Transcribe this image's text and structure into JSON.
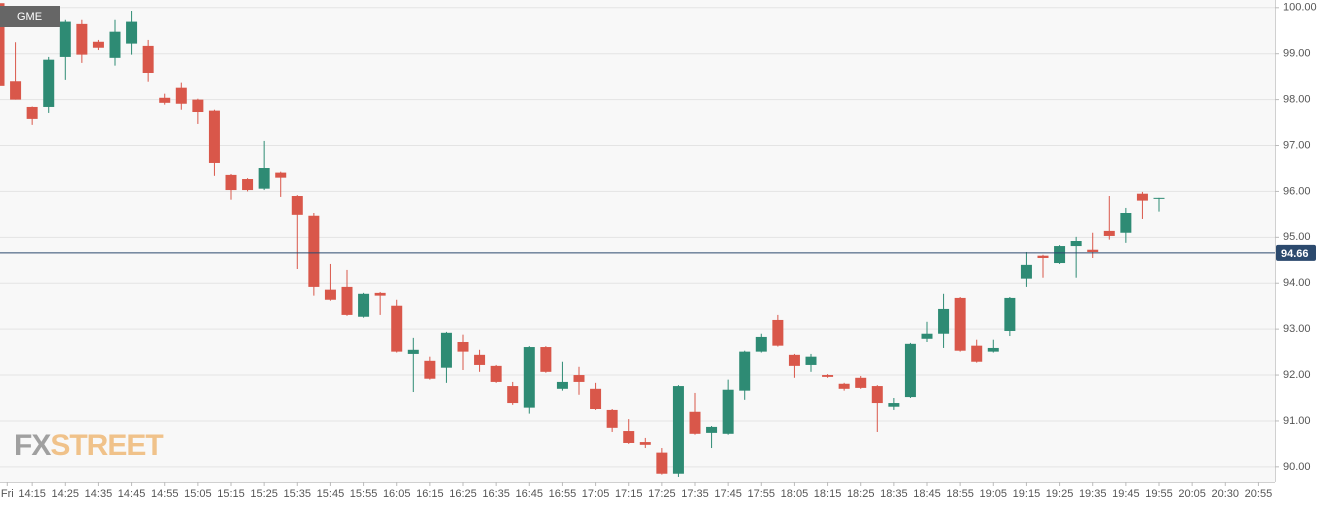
{
  "chart_data": {
    "type": "candlestick",
    "symbol": "GME",
    "watermark": [
      "FX",
      "STREET"
    ],
    "up_color": "#2e8b74",
    "down_color": "#d9574a",
    "grid": true,
    "current_price": 94.66,
    "current_price_color": "#2c4a6e",
    "x": [
      0,
      1,
      2,
      3,
      4,
      5,
      6,
      7,
      8,
      9,
      10,
      11,
      12,
      13,
      14,
      15,
      16,
      17,
      18,
      19,
      20,
      21,
      22,
      23,
      24,
      25,
      26,
      27,
      28,
      29,
      30,
      31,
      32,
      33,
      34,
      35,
      36,
      37,
      38,
      39,
      40,
      41,
      42,
      43,
      44,
      45,
      46,
      47,
      48,
      49,
      50,
      51,
      52,
      53,
      54,
      55,
      56,
      57,
      58,
      59,
      60,
      61,
      62,
      63,
      64,
      65,
      66,
      67,
      68,
      69,
      70
    ],
    "open": [
      100.1,
      98.4,
      97.84,
      97.84,
      98.93,
      99.65,
      99.26,
      98.91,
      99.22,
      99.17,
      98.04,
      98.26,
      98.0,
      97.76,
      96.36,
      96.27,
      96.06,
      96.41,
      95.9,
      95.47,
      93.86,
      93.92,
      93.27,
      93.79,
      93.51,
      92.46,
      92.31,
      92.16,
      92.72,
      92.44,
      92.2,
      91.76,
      91.29,
      92.61,
      91.7,
      92.0,
      91.7,
      91.24,
      90.78,
      90.54,
      90.31,
      89.85,
      91.2,
      90.74,
      90.72,
      91.66,
      92.51,
      93.2,
      92.44,
      92.22,
      92.0,
      91.81,
      91.94,
      91.76,
      91.31,
      91.52,
      92.79,
      92.9,
      93.68,
      92.64,
      92.51,
      92.96,
      94.1,
      94.6,
      94.44,
      94.81,
      94.73,
      95.14,
      95.1,
      95.95,
      95.85
    ],
    "high": [
      100.15,
      99.25,
      97.85,
      98.93,
      99.74,
      99.74,
      99.3,
      99.74,
      99.93,
      99.3,
      98.13,
      98.37,
      98.02,
      97.78,
      96.38,
      96.29,
      97.1,
      96.43,
      95.92,
      95.53,
      94.42,
      94.29,
      93.79,
      93.81,
      93.64,
      92.81,
      92.4,
      92.94,
      92.88,
      92.55,
      92.22,
      91.85,
      92.63,
      92.63,
      92.29,
      92.18,
      91.83,
      91.26,
      91.04,
      90.63,
      90.41,
      91.78,
      91.61,
      90.89,
      91.9,
      92.53,
      92.9,
      93.31,
      92.46,
      92.46,
      92.02,
      91.83,
      91.98,
      91.78,
      91.5,
      92.7,
      93.16,
      93.77,
      93.7,
      92.77,
      92.77,
      93.7,
      94.68,
      94.62,
      94.83,
      95.01,
      95.1,
      95.9,
      95.64,
      95.99,
      95.86
    ],
    "low": [
      98.25,
      98.0,
      97.45,
      97.71,
      98.43,
      98.8,
      99.08,
      98.74,
      98.98,
      98.39,
      97.89,
      97.78,
      97.47,
      96.34,
      95.82,
      96.0,
      96.03,
      95.88,
      94.31,
      93.73,
      93.62,
      93.29,
      93.25,
      93.31,
      92.49,
      91.63,
      91.9,
      91.83,
      92.11,
      92.07,
      91.83,
      91.35,
      91.16,
      92.05,
      91.66,
      91.57,
      91.24,
      90.76,
      90.5,
      90.41,
      89.83,
      89.78,
      90.7,
      90.41,
      90.7,
      91.46,
      92.49,
      92.62,
      91.94,
      92.07,
      91.94,
      91.66,
      91.7,
      90.76,
      91.24,
      91.5,
      92.72,
      92.59,
      92.51,
      92.27,
      92.49,
      92.85,
      93.92,
      94.12,
      94.42,
      94.12,
      94.55,
      94.95,
      94.88,
      95.4,
      95.56
    ],
    "close": [
      98.3,
      98.0,
      97.58,
      98.87,
      99.7,
      98.98,
      99.13,
      99.48,
      99.7,
      98.58,
      97.93,
      97.91,
      97.73,
      96.62,
      96.03,
      96.03,
      96.51,
      96.3,
      95.49,
      93.92,
      93.64,
      93.31,
      93.77,
      93.73,
      92.51,
      92.55,
      91.92,
      92.92,
      92.51,
      92.22,
      91.85,
      91.39,
      92.61,
      92.07,
      91.85,
      91.85,
      91.26,
      90.85,
      90.52,
      90.48,
      89.85,
      91.76,
      90.72,
      90.87,
      91.68,
      92.51,
      92.83,
      92.64,
      92.2,
      92.4,
      91.96,
      91.7,
      91.72,
      91.39,
      91.39,
      92.68,
      92.9,
      93.44,
      92.53,
      92.29,
      92.59,
      93.68,
      94.4,
      94.55,
      94.81,
      94.92,
      94.68,
      95.03,
      95.53,
      95.8,
      95.86
    ],
    "xlim": [
      0.06,
      77
    ],
    "xticks": [
      {
        "value": 0.5,
        "label": "Fri"
      },
      {
        "value": 2,
        "label": "14:15"
      },
      {
        "value": 4,
        "label": "14:25"
      },
      {
        "value": 6,
        "label": "14:35"
      },
      {
        "value": 8,
        "label": "14:45"
      },
      {
        "value": 10,
        "label": "14:55"
      },
      {
        "value": 12,
        "label": "15:05"
      },
      {
        "value": 14,
        "label": "15:15"
      },
      {
        "value": 16,
        "label": "15:25"
      },
      {
        "value": 18,
        "label": "15:35"
      },
      {
        "value": 20,
        "label": "15:45"
      },
      {
        "value": 22,
        "label": "15:55"
      },
      {
        "value": 24,
        "label": "16:05"
      },
      {
        "value": 26,
        "label": "16:15"
      },
      {
        "value": 28,
        "label": "16:25"
      },
      {
        "value": 30,
        "label": "16:35"
      },
      {
        "value": 32,
        "label": "16:45"
      },
      {
        "value": 34,
        "label": "16:55"
      },
      {
        "value": 36,
        "label": "17:05"
      },
      {
        "value": 38,
        "label": "17:15"
      },
      {
        "value": 40,
        "label": "17:25"
      },
      {
        "value": 42,
        "label": "17:35"
      },
      {
        "value": 44,
        "label": "17:45"
      },
      {
        "value": 46,
        "label": "17:55"
      },
      {
        "value": 48,
        "label": "18:05"
      },
      {
        "value": 50,
        "label": "18:15"
      },
      {
        "value": 52,
        "label": "18:25"
      },
      {
        "value": 54,
        "label": "18:35"
      },
      {
        "value": 56,
        "label": "18:45"
      },
      {
        "value": 58,
        "label": "18:55"
      },
      {
        "value": 60,
        "label": "19:05"
      },
      {
        "value": 62,
        "label": "19:15"
      },
      {
        "value": 64,
        "label": "19:25"
      },
      {
        "value": 66,
        "label": "19:35"
      },
      {
        "value": 68,
        "label": "19:45"
      },
      {
        "value": 70,
        "label": "19:55"
      },
      {
        "value": 72,
        "label": "20:05"
      },
      {
        "value": 74,
        "label": "20:30"
      },
      {
        "value": 76,
        "label": "20:55"
      }
    ],
    "ylim": [
      89.67,
      100.17
    ],
    "yticks": [
      {
        "value": 100,
        "label": "100.00"
      },
      {
        "value": 99,
        "label": "99.00"
      },
      {
        "value": 98,
        "label": "98.00"
      },
      {
        "value": 97,
        "label": "97.00"
      },
      {
        "value": 96,
        "label": "96.00"
      },
      {
        "value": 95,
        "label": "95.00"
      },
      {
        "value": 94,
        "label": "94.00"
      },
      {
        "value": 93,
        "label": "93.00"
      },
      {
        "value": 92,
        "label": "92.00"
      },
      {
        "value": 91,
        "label": "91.00"
      },
      {
        "value": 90,
        "label": "90.00"
      }
    ]
  }
}
